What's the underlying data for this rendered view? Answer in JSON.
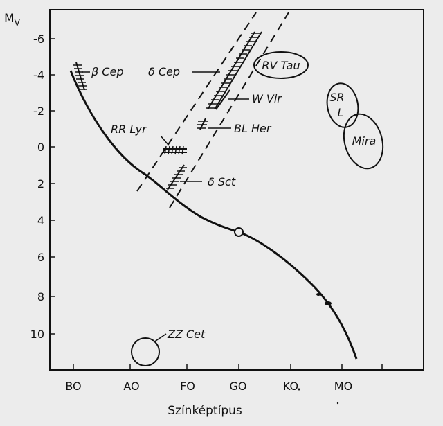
{
  "axes": {
    "y_title": "M",
    "y_title_sub": "V",
    "y_ticks": [
      "-6",
      "-4",
      "-2",
      "0",
      "2",
      "4",
      "6",
      "8",
      "10"
    ],
    "x_ticks": [
      "BO",
      "AO",
      "FO",
      "GO",
      "KO",
      "MO"
    ],
    "x_title": "Színképtípus"
  },
  "labels": {
    "beta_cep": "β Cep",
    "delta_cep": "δ Cep",
    "rv_tau": "RV Tau",
    "w_vir": "W Vir",
    "bl_her": "BL Her",
    "rr_lyr": "RR Lyr",
    "delta_sct": "δ Sct",
    "srl_line1": "SR",
    "srl_line2": "L",
    "mira": "Mira",
    "zz_cet": "ZZ Cet"
  },
  "colors": {
    "background": "#ececec",
    "ink": "#111111"
  }
}
